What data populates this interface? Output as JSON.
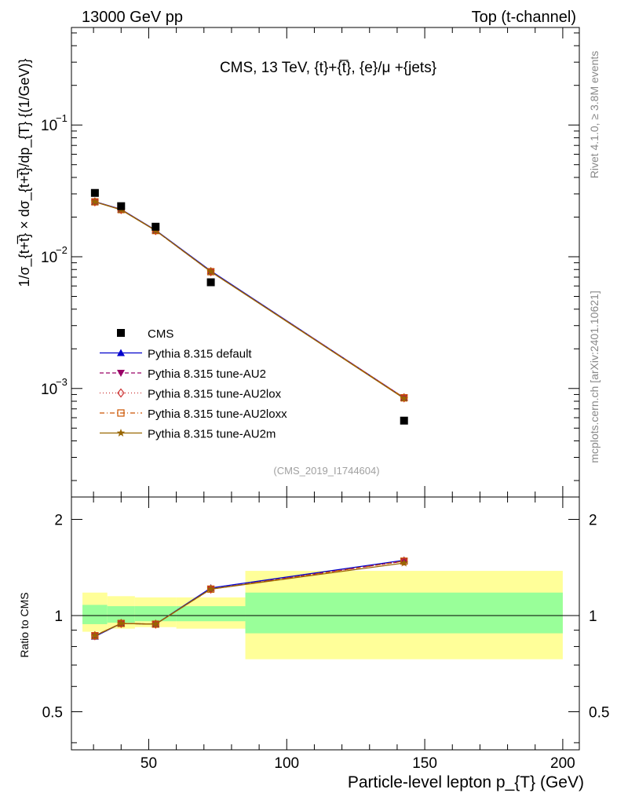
{
  "header": {
    "left": "13000 GeV pp",
    "right": "Top (t-channel)"
  },
  "side_labels": {
    "rivet": "Rivet 4.1.0, ≥ 3.8M events",
    "mcplots": "mcplots.cern.ch [arXiv:2401.10621]"
  },
  "chart_data": {
    "type": "line",
    "title": "CMS, 13 TeV, {t}+{t̅}, {e}/μ +{jets}",
    "analysis_id": "(CMS_2019_I1744604)",
    "xlabel": "Particle-level lepton p_{T} (GeV)",
    "ylabel": "1/σ_{t+t̅} × dσ_{t+t̅}/dp_{T}  {(1/GeV)}",
    "ratio_ylabel": "Ratio to CMS",
    "xlim": [
      22,
      206
    ],
    "ylim": [
      0.00015,
      0.55
    ],
    "yscale": "log",
    "ratio_ylim": [
      0.38,
      2.35
    ],
    "ratio_yscale": "log",
    "x_ticks": [
      50,
      100,
      150,
      200
    ],
    "x_tick_labels": [
      "50",
      "100",
      "150",
      "200"
    ],
    "y_tick_labels": [
      {
        "value": 0.1,
        "base": "10",
        "exp": "−1"
      },
      {
        "value": 0.01,
        "base": "10",
        "exp": "−2"
      },
      {
        "value": 0.001,
        "base": "10",
        "exp": "−3"
      }
    ],
    "ratio_ticks": [
      0.5,
      1,
      2
    ],
    "ratio_tick_labels": [
      "0.5",
      "1",
      "2"
    ],
    "bins": [
      [
        26,
        35
      ],
      [
        35,
        45
      ],
      [
        45,
        60
      ],
      [
        60,
        85
      ],
      [
        85,
        200
      ]
    ],
    "data": {
      "name": "CMS",
      "x": [
        30.5,
        40,
        52.5,
        72.5,
        142.5
      ],
      "y": [
        0.0305,
        0.0242,
        0.0169,
        0.0064,
        0.00057
      ],
      "color": "#000000"
    },
    "ratio_band_stat": [
      [
        0.94,
        1.08
      ],
      [
        0.95,
        1.07
      ],
      [
        0.96,
        1.07
      ],
      [
        0.96,
        1.07
      ],
      [
        0.88,
        1.18
      ]
    ],
    "ratio_band_total": [
      [
        0.89,
        1.18
      ],
      [
        0.91,
        1.15
      ],
      [
        0.92,
        1.14
      ],
      [
        0.91,
        1.14
      ],
      [
        0.73,
        1.38
      ]
    ],
    "series": [
      {
        "name": "Pythia 8.315 default",
        "x": [
          30.5,
          40,
          52.5,
          72.5,
          142.5
        ],
        "y": [
          0.0262,
          0.0229,
          0.0159,
          0.0078,
          0.00085
        ],
        "ratio": [
          0.86,
          0.945,
          0.94,
          1.22,
          1.49
        ],
        "color": "#0000cc",
        "marker": "triangle-up",
        "dash": ""
      },
      {
        "name": "Pythia 8.315 tune-AU2",
        "x": [
          30.5,
          40,
          52.5,
          72.5,
          142.5
        ],
        "y": [
          0.0261,
          0.0228,
          0.0158,
          0.0077,
          0.00085
        ],
        "ratio": [
          0.865,
          0.945,
          0.94,
          1.21,
          1.48
        ],
        "color": "#990066",
        "marker": "triangle-down",
        "dash": "5,3"
      },
      {
        "name": "Pythia 8.315 tune-AU2lox",
        "x": [
          30.5,
          40,
          52.5,
          72.5,
          142.5
        ],
        "y": [
          0.0261,
          0.0228,
          0.0158,
          0.0077,
          0.00085
        ],
        "ratio": [
          0.865,
          0.945,
          0.94,
          1.21,
          1.48
        ],
        "color": "#cc3333",
        "marker": "diamond-open",
        "dash": "1,3"
      },
      {
        "name": "Pythia 8.315 tune-AU2loxx",
        "x": [
          30.5,
          40,
          52.5,
          72.5,
          142.5
        ],
        "y": [
          0.0261,
          0.0228,
          0.0158,
          0.0077,
          0.00085
        ],
        "ratio": [
          0.865,
          0.945,
          0.94,
          1.21,
          1.48
        ],
        "color": "#cc5500",
        "marker": "square-open",
        "dash": "6,3,1,3"
      },
      {
        "name": "Pythia 8.315 tune-AU2m",
        "x": [
          30.5,
          40,
          52.5,
          72.5,
          142.5
        ],
        "y": [
          0.0261,
          0.0227,
          0.0158,
          0.0077,
          0.00084
        ],
        "ratio": [
          0.865,
          0.945,
          0.94,
          1.21,
          1.46
        ],
        "color": "#996600",
        "marker": "star",
        "dash": ""
      }
    ]
  }
}
